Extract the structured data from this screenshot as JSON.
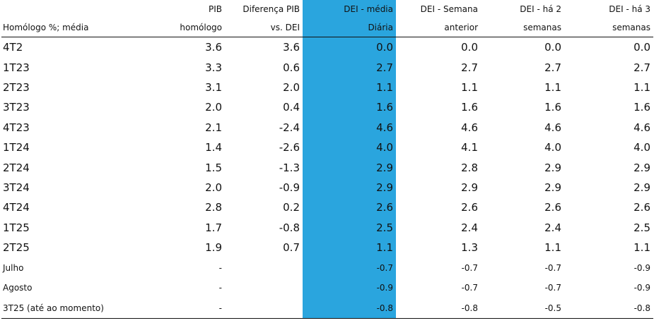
{
  "table": {
    "header": [
      [
        null,
        "PIB",
        "Diferença PIB",
        "DEI - média",
        "DEI - Semana",
        "DEI - há 2",
        "DEI - há 3"
      ],
      [
        "Homólogo %; média",
        "homólogo",
        "vs. DEI",
        "Diária",
        "anterior",
        "semanas",
        "semanas"
      ]
    ],
    "rows": [
      [
        "4T2",
        "3.6",
        "3.6",
        "0.0",
        "0.0",
        "0.0",
        "0.0"
      ],
      [
        "1T23",
        "3.3",
        "0.6",
        "2.7",
        "2.7",
        "2.7",
        "2.7"
      ],
      [
        "2T23",
        "3.1",
        "2.0",
        "1.1",
        "1.1",
        "1.1",
        "1.1"
      ],
      [
        "3T23",
        "2.0",
        "0.4",
        "1.6",
        "1.6",
        "1.6",
        "1.6"
      ],
      [
        "4T23",
        "2.1",
        "-2.4",
        "4.6",
        "4.6",
        "4.6",
        "4.6"
      ],
      [
        "1T24",
        "1.4",
        "-2.6",
        "4.0",
        "4.1",
        "4.0",
        "4.0"
      ],
      [
        "2T24",
        "1.5",
        "-1.3",
        "2.9",
        "2.8",
        "2.9",
        "2.9"
      ],
      [
        "3T24",
        "2.0",
        "-0.9",
        "2.9",
        "2.9",
        "2.9",
        "2.9"
      ],
      [
        "4T24",
        "2.8",
        "0.2",
        "2.6",
        "2.6",
        "2.6",
        "2.6"
      ],
      [
        "1T25",
        "1.7",
        "-0.8",
        "2.5",
        "2.4",
        "2.4",
        "2.5"
      ],
      [
        "2T25",
        "1.9",
        "0.7",
        "1.1",
        "1.3",
        "1.1",
        "1.1"
      ],
      [
        "Julho",
        "-",
        null,
        "-0.7",
        "-0.7",
        "-0.7",
        "-0.9"
      ],
      [
        "Agosto",
        "-",
        null,
        "-0.9",
        "-0.7",
        "-0.7",
        "-0.9"
      ],
      [
        "3T25 (até ao momento)",
        "-",
        null,
        "-0.8",
        "-0.8",
        "-0.5",
        "-0.8"
      ]
    ]
  }
}
